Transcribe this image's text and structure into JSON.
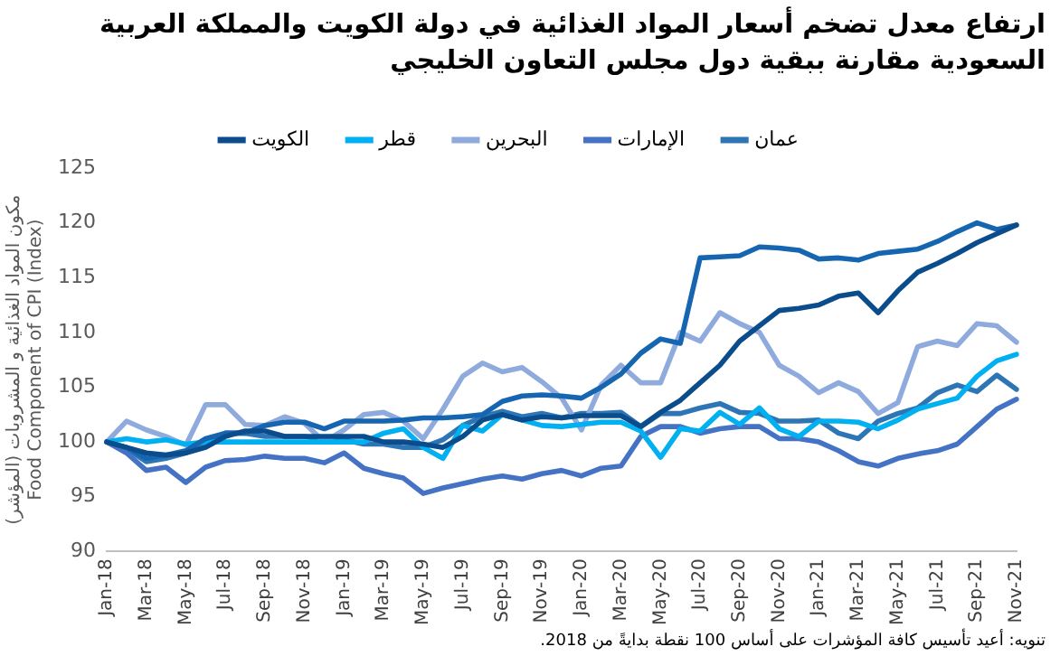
{
  "chart_data": {
    "type": "line",
    "title": "ارتفاع معدل تضخم أسعار المواد الغذائية في دولة الكويت والمملكة العربية السعودية مقارنة ببقية دول مجلس التعاون الخليجي",
    "ylabel": "مكون المواد الغذائية و المشروبات (المؤشر)\nFood Component of CPI (Index)",
    "annotations": [
      "تنويه: أعيد تأسيس كافة المؤشرات على أساس 100 نقطة بدايةً من 2018."
    ],
    "categories": [
      "Jan-18",
      null,
      "Mar-18",
      null,
      "May-18",
      null,
      "Jul-18",
      null,
      "Sep-18",
      null,
      "Nov-18",
      null,
      "Jan-19",
      null,
      "Mar-19",
      null,
      "May-19",
      null,
      "Jul-19",
      null,
      "Sep-19",
      null,
      "Nov-19",
      null,
      "Jan-20",
      null,
      "Mar-20",
      null,
      "May-20",
      null,
      "Jul-20",
      null,
      "Sep-20",
      null,
      "Nov-20",
      null,
      "Jan-21",
      null,
      "Mar-21",
      null,
      "May-21",
      null,
      "Jul-21",
      null,
      "Sep-21",
      null,
      "Nov-21"
    ],
    "series": [
      {
        "name": "الكويت",
        "color": "#0b4d8c",
        "values": [
          100,
          99.5,
          99,
          98.8,
          99,
          99.5,
          100.5,
          101,
          101,
          100.5,
          100.5,
          100.5,
          100.5,
          100.5,
          100,
          100,
          99.8,
          99.5,
          100.5,
          102,
          102.5,
          102,
          102.3,
          102.2,
          102.4,
          102.4,
          102.4,
          101.4,
          102.7,
          103.8,
          105.4,
          107,
          109.2,
          110.6,
          112,
          112.2,
          112.5,
          113.3,
          113.6,
          111.8,
          113.8,
          115.5,
          116.3,
          117.2,
          118.2,
          119,
          119.8
        ]
      },
      {
        "color": "#1565b0",
        "values": [
          100,
          99.5,
          98.5,
          98.8,
          99.2,
          100.3,
          100.8,
          100.8,
          101.5,
          101.8,
          101.8,
          101.2,
          101.9,
          101.9,
          101.9,
          102,
          102.2,
          102.2,
          102.3,
          102.5,
          103.7,
          104.2,
          104.3,
          104.2,
          104,
          105,
          106.2,
          108.1,
          109.4,
          109,
          116.8,
          116.9,
          117,
          117.8,
          117.7,
          117.5,
          116.7,
          116.8,
          116.6,
          117.2,
          117.4,
          117.6,
          118.3,
          119.2,
          120,
          119.4,
          119.8
        ]
      },
      {
        "name": "قطر",
        "color": "#00b0f0",
        "values": [
          100,
          100.3,
          100,
          100.2,
          99.8,
          100,
          100,
          100,
          100,
          100,
          100,
          100,
          100,
          100,
          100.8,
          101.2,
          99.5,
          98.5,
          101.5,
          101,
          102.5,
          102,
          101.5,
          101.4,
          101.6,
          101.8,
          101.8,
          101,
          98.6,
          101.2,
          101,
          102.7,
          101.6,
          103.1,
          101.2,
          100.5,
          101.9,
          101.9,
          101.8,
          101.2,
          102,
          103,
          103.5,
          104,
          106,
          107.4,
          108
        ]
      },
      {
        "name": "البحرين",
        "color": "#8faadc",
        "values": [
          100,
          101.9,
          101.1,
          100.5,
          99.7,
          103.4,
          103.4,
          101.6,
          101.5,
          102.3,
          101.7,
          100,
          101.1,
          102.5,
          102.7,
          101.9,
          100.3,
          103,
          106,
          107.2,
          106.4,
          106.8,
          105.5,
          104,
          101.1,
          105.2,
          107,
          105.4,
          105.4,
          110,
          109.2,
          111.8,
          110.8,
          110,
          107,
          106,
          104.5,
          105.4,
          104.6,
          102.6,
          103.6,
          108.7,
          109.2,
          108.8,
          110.8,
          110.6,
          109.1
        ]
      },
      {
        "name": "الإمارات",
        "color": "#4472c4",
        "values": [
          100,
          99,
          97.4,
          97.7,
          96.3,
          97.7,
          98.3,
          98.4,
          98.7,
          98.5,
          98.5,
          98.1,
          99,
          97.6,
          97.1,
          96.7,
          95.3,
          95.8,
          96.2,
          96.6,
          96.9,
          96.6,
          97.1,
          97.4,
          96.9,
          97.6,
          97.8,
          100.5,
          101.4,
          101.4,
          100.8,
          101.2,
          101.4,
          101.4,
          100.3,
          100.3,
          100,
          99.2,
          98.2,
          97.8,
          98.5,
          98.9,
          99.2,
          99.8,
          101.4,
          103,
          103.9
        ]
      },
      {
        "name": "عمان",
        "color": "#2e75b6",
        "values": [
          100,
          99.4,
          98.2,
          98.5,
          99,
          100,
          100.8,
          100.8,
          100.5,
          100.5,
          100.5,
          100.2,
          100.2,
          99.8,
          99.8,
          99.5,
          99.5,
          100.2,
          101.5,
          102.3,
          102.8,
          102.3,
          102.6,
          102.2,
          102.6,
          102.6,
          102.7,
          101.4,
          102.6,
          102.6,
          103.1,
          103.5,
          102.7,
          102.6,
          101.9,
          101.9,
          102,
          100.8,
          100.3,
          101.9,
          102.6,
          103.1,
          104.5,
          105.2,
          104.6,
          106.1,
          104.8
        ]
      }
    ],
    "ylim": [
      90,
      125
    ],
    "yticks": [
      90,
      95,
      100,
      105,
      110,
      115,
      120,
      125
    ],
    "grid": false,
    "legend": "top",
    "marker": "none",
    "line_style": "solid"
  }
}
